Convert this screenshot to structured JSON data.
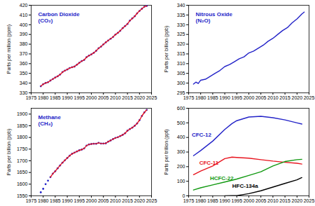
{
  "chart_data": [
    {
      "type": "line",
      "title": "Carbon Dioxide\n(CO₂)",
      "y_label": "Parts per million (ppm)",
      "x": [
        1979,
        1980,
        1981,
        1982,
        1983,
        1984,
        1985,
        1986,
        1987,
        1988,
        1989,
        1990,
        1991,
        1992,
        1993,
        1994,
        1995,
        1996,
        1997,
        1998,
        1999,
        2000,
        2001,
        2002,
        2003,
        2004,
        2005,
        2006,
        2007,
        2008,
        2009,
        2010,
        2011,
        2012,
        2013,
        2014,
        2015,
        2016,
        2017,
        2018,
        2019,
        2020,
        2021,
        2022,
        2023
      ],
      "series": [
        {
          "type": "scatter",
          "marker": "circle",
          "color": "#2323c8",
          "values": [
            336.8,
            338.9,
            340.1,
            340.9,
            342.6,
            344.2,
            345.7,
            347.0,
            348.8,
            351.3,
            352.8,
            354.0,
            355.5,
            356.3,
            357.0,
            358.9,
            360.9,
            362.6,
            363.8,
            366.6,
            368.3,
            369.5,
            371.1,
            373.2,
            375.8,
            377.5,
            379.8,
            381.9,
            383.8,
            385.6,
            387.4,
            389.9,
            391.6,
            393.8,
            396.5,
            398.6,
            400.8,
            404.2,
            406.5,
            408.7,
            411.7,
            414.2,
            416.4,
            418.5,
            419.3
          ]
        },
        {
          "type": "line",
          "color": "#e8141e",
          "values": [
            336.8,
            338.9,
            340.1,
            340.9,
            342.6,
            344.2,
            345.7,
            347.0,
            348.8,
            351.3,
            352.8,
            354.0,
            355.5,
            356.3,
            357.0,
            358.9,
            360.9,
            362.6,
            363.8,
            366.6,
            368.3,
            369.5,
            371.1,
            373.2,
            375.8,
            377.5,
            379.8,
            381.9,
            383.8,
            385.6,
            387.4,
            389.9,
            391.6,
            393.8,
            396.5,
            398.6,
            400.8,
            404.2,
            406.5,
            408.7,
            411.7,
            414.2,
            416.4,
            418.5,
            419.3
          ]
        }
      ],
      "xlim": [
        1975,
        2025
      ],
      "xticks": [
        1975,
        1980,
        1985,
        1990,
        1995,
        2000,
        2005,
        2010,
        2015,
        2020,
        2025
      ],
      "ylim": [
        330,
        420
      ],
      "yticks": [
        330,
        340,
        350,
        360,
        370,
        380,
        390,
        400,
        410,
        420
      ]
    },
    {
      "type": "line",
      "title": "Nitrous Oxide\n(N₂O)",
      "y_label": "Parts per billion (ppb)",
      "x": [
        1977,
        1978,
        1979,
        1980,
        1982,
        1984,
        1986,
        1988,
        1990,
        1992,
        1994,
        1996,
        1998,
        2000,
        2002,
        2004,
        2006,
        2008,
        2010,
        2012,
        2014,
        2016,
        2018,
        2020,
        2022,
        2023
      ],
      "series": [
        {
          "type": "line",
          "color": "#2323c8",
          "values": [
            299.5,
            300.5,
            299.8,
            301.5,
            302,
            303.5,
            305,
            306.5,
            308.5,
            309.5,
            311,
            312.5,
            313.5,
            315.5,
            316.5,
            318,
            319.5,
            321.5,
            323,
            325,
            327,
            328.5,
            331,
            333,
            335.5,
            336.5
          ]
        }
      ],
      "xlim": [
        1975,
        2025
      ],
      "xticks": [
        1975,
        1980,
        1985,
        1990,
        1995,
        2000,
        2005,
        2010,
        2015,
        2020,
        2025
      ],
      "ylim": [
        295,
        340
      ],
      "yticks": [
        295,
        300,
        305,
        310,
        315,
        320,
        325,
        330,
        335,
        340
      ]
    },
    {
      "type": "line",
      "title": "Methane\n(CH₄)",
      "y_label": "Parts per billion (ppb)",
      "x": [
        1979,
        1980,
        1981,
        1982,
        1983,
        1984,
        1985,
        1986,
        1987,
        1988,
        1989,
        1990,
        1991,
        1992,
        1993,
        1994,
        1995,
        1996,
        1997,
        1998,
        1999,
        2000,
        2001,
        2002,
        2003,
        2004,
        2005,
        2006,
        2007,
        2008,
        2009,
        2010,
        2011,
        2012,
        2013,
        2014,
        2015,
        2016,
        2017,
        2018,
        2019,
        2020,
        2021,
        2022,
        2023
      ],
      "series": [
        {
          "type": "scatter",
          "marker": "circle",
          "color": "#2323c8",
          "values": [
            1565,
            1580,
            1600,
            1615,
            1630,
            1645,
            1655,
            1668,
            1680,
            1692,
            1702,
            1712,
            1722,
            1730,
            1735,
            1740,
            1745,
            1748,
            1753,
            1765,
            1770,
            1772,
            1773,
            1773,
            1777,
            1774,
            1774,
            1775,
            1782,
            1787,
            1793,
            1798,
            1801,
            1806,
            1811,
            1818,
            1829,
            1836,
            1842,
            1850,
            1860,
            1874,
            1892,
            1907,
            1918
          ]
        },
        {
          "type": "line",
          "color": "#e8141e",
          "values": [
            null,
            null,
            null,
            null,
            1630,
            1645,
            1655,
            1668,
            1680,
            1692,
            1702,
            1712,
            1722,
            1730,
            1735,
            1740,
            1745,
            1748,
            1753,
            1765,
            1770,
            1772,
            1773,
            1773,
            1777,
            1774,
            1774,
            1775,
            1782,
            1787,
            1793,
            1798,
            1801,
            1806,
            1811,
            1818,
            1829,
            1836,
            1842,
            1850,
            1860,
            1874,
            1892,
            1907,
            1918
          ]
        }
      ],
      "xlim": [
        1975,
        2025
      ],
      "xticks": [
        1975,
        1980,
        1985,
        1990,
        1995,
        2000,
        2005,
        2010,
        2015,
        2020,
        2025
      ],
      "ylim": [
        1550,
        1925
      ],
      "yticks": [
        1550,
        1600,
        1650,
        1700,
        1750,
        1800,
        1850,
        1900
      ]
    },
    {
      "type": "line",
      "y_label": "Parts per trillion (ppt)",
      "x": [
        1977,
        1980,
        1985,
        1990,
        1993,
        1995,
        2000,
        2005,
        2010,
        2015,
        2020,
        2022
      ],
      "series": [
        {
          "name": "CFC-12",
          "color": "#2323c8",
          "values": [
            275,
            310,
            375,
            455,
            495,
            515,
            540,
            545,
            535,
            520,
            500,
            492
          ]
        },
        {
          "name": "CFC-11",
          "color": "#e8141e",
          "values": [
            145,
            170,
            205,
            255,
            265,
            263,
            258,
            248,
            238,
            230,
            223,
            218
          ]
        },
        {
          "name": "HCFC-22",
          "color": "#119911",
          "values": [
            40,
            55,
            75,
            95,
            107,
            115,
            140,
            165,
            205,
            235,
            248,
            250
          ]
        },
        {
          "name": "HFC-134a",
          "color": "#000000",
          "values": [
            null,
            null,
            null,
            0,
            1,
            2,
            15,
            35,
            60,
            85,
            110,
            125
          ]
        }
      ],
      "xlim": [
        1975,
        2025
      ],
      "xticks": [
        1975,
        1980,
        1985,
        1990,
        1995,
        2000,
        2005,
        2010,
        2015,
        2020,
        2025
      ],
      "ylim": [
        0,
        600
      ],
      "yticks": [
        0,
        100,
        200,
        300,
        400,
        500,
        600
      ]
    }
  ]
}
